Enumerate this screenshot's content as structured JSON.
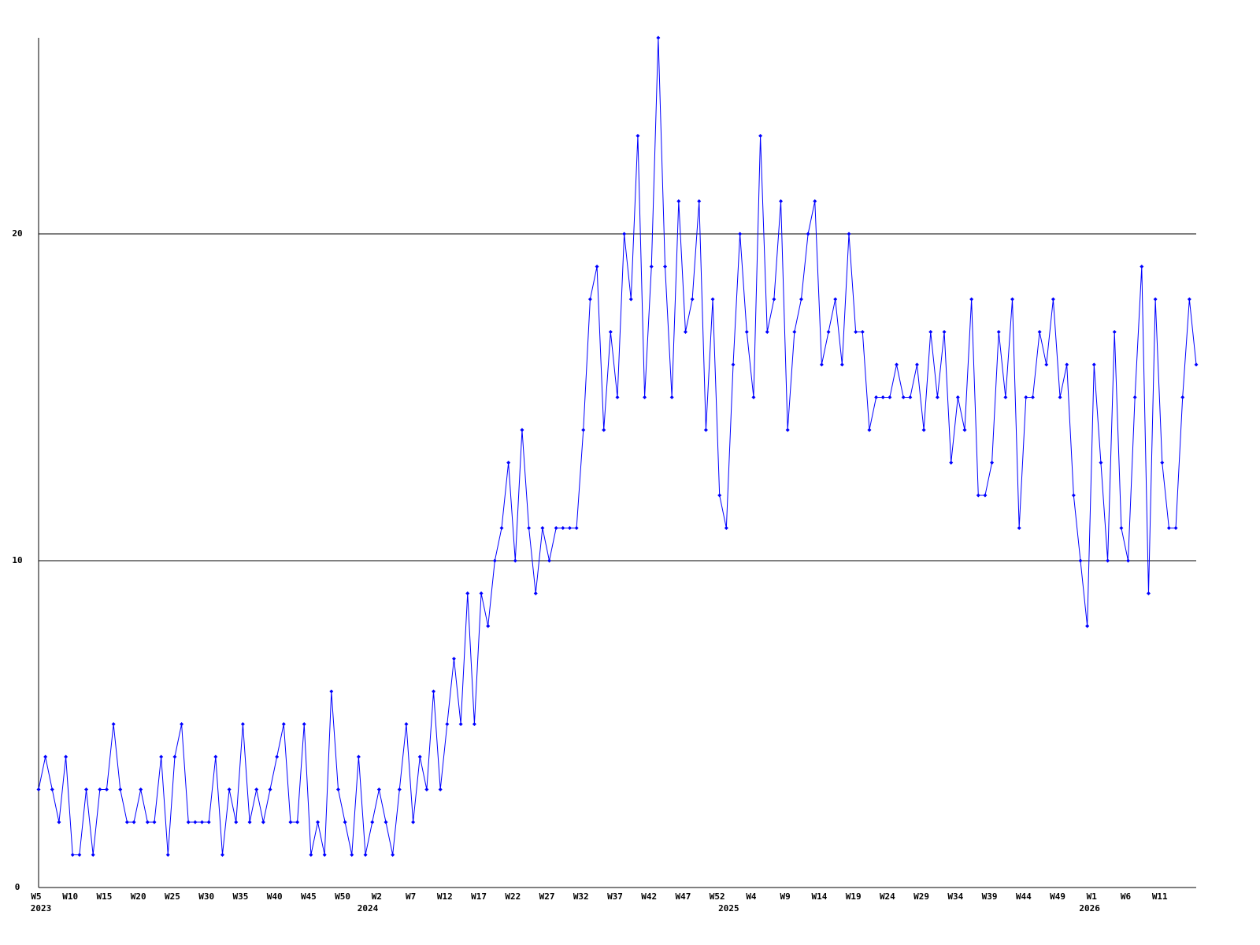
{
  "chart_data": {
    "type": "line",
    "color": "#0000ff",
    "ylim": [
      0,
      26
    ],
    "yticks": [
      0,
      10,
      20
    ],
    "grid": true,
    "categories": [
      "W5",
      null,
      null,
      null,
      null,
      "W10",
      null,
      null,
      null,
      null,
      "W15",
      null,
      null,
      null,
      null,
      "W20",
      null,
      null,
      null,
      null,
      "W25",
      null,
      null,
      null,
      null,
      "W30",
      null,
      null,
      null,
      null,
      "W35",
      null,
      null,
      null,
      null,
      "W40",
      null,
      null,
      null,
      null,
      "W45",
      null,
      null,
      null,
      null,
      "W50",
      null,
      null,
      null,
      null,
      "W2",
      null,
      null,
      null,
      null,
      "W7",
      null,
      null,
      null,
      null,
      "W12",
      null,
      null,
      null,
      null,
      "W17",
      null,
      null,
      null,
      null,
      "W22",
      null,
      null,
      null,
      null,
      "W27",
      null,
      null,
      null,
      null,
      "W32",
      null,
      null,
      null,
      null,
      "W37",
      null,
      null,
      null,
      null,
      "W42",
      null,
      null,
      null,
      null,
      "W47",
      null,
      null,
      null,
      null,
      "W52",
      null,
      null,
      null,
      null,
      "W4",
      null,
      null,
      null,
      null,
      "W9",
      null,
      null,
      null,
      null,
      "W14",
      null,
      null,
      null,
      null,
      "W19",
      null,
      null,
      null,
      null,
      "W24",
      null,
      null,
      null,
      null,
      "W29",
      null,
      null,
      null,
      null,
      "W34",
      null,
      null,
      null,
      null,
      "W39",
      null,
      null,
      null,
      null,
      "W44",
      null,
      null,
      null,
      null,
      "W49",
      null,
      null,
      null,
      null,
      "W1",
      null,
      null,
      null,
      null,
      "W6",
      null,
      null,
      null,
      null,
      "W11",
      null,
      null,
      null,
      null,
      null
    ],
    "year_labels": [
      "2023",
      null,
      null,
      null,
      null,
      null,
      null,
      null,
      null,
      null,
      null,
      null,
      null,
      null,
      null,
      null,
      null,
      null,
      null,
      null,
      null,
      null,
      null,
      null,
      null,
      null,
      null,
      null,
      null,
      null,
      null,
      null,
      null,
      null,
      null,
      null,
      null,
      null,
      null,
      null,
      null,
      null,
      null,
      null,
      null,
      null,
      null,
      null,
      "2024",
      null,
      null,
      null,
      null,
      null,
      null,
      null,
      null,
      null,
      null,
      null,
      null,
      null,
      null,
      null,
      null,
      null,
      null,
      null,
      null,
      null,
      null,
      null,
      null,
      null,
      null,
      null,
      null,
      null,
      null,
      null,
      null,
      null,
      null,
      null,
      null,
      null,
      null,
      null,
      null,
      null,
      null,
      null,
      null,
      null,
      null,
      null,
      null,
      null,
      null,
      null,
      null,
      "2025",
      null,
      null,
      null,
      null,
      null,
      null,
      null,
      null,
      null,
      null,
      null,
      null,
      null,
      null,
      null,
      null,
      null,
      null,
      null,
      null,
      null,
      null,
      null,
      null,
      null,
      null,
      null,
      null,
      null,
      null,
      null,
      null,
      null,
      null,
      null,
      null,
      null,
      null,
      null,
      null,
      null,
      null,
      null,
      null,
      null,
      null,
      null,
      null,
      null,
      null,
      null,
      null,
      "2026",
      null,
      null,
      null,
      null,
      null,
      null,
      null,
      null,
      null,
      null,
      null,
      null,
      null,
      null,
      null,
      null
    ],
    "values": [
      3,
      4,
      3,
      2,
      4,
      1,
      1,
      3,
      1,
      3,
      3,
      5,
      3,
      2,
      2,
      3,
      2,
      2,
      4,
      1,
      4,
      5,
      2,
      2,
      2,
      2,
      4,
      1,
      3,
      2,
      5,
      2,
      3,
      2,
      3,
      4,
      5,
      2,
      2,
      5,
      1,
      2,
      1,
      6,
      3,
      2,
      1,
      4,
      1,
      2,
      3,
      2,
      1,
      3,
      5,
      2,
      4,
      3,
      6,
      3,
      5,
      7,
      5,
      9,
      5,
      9,
      8,
      10,
      11,
      13,
      10,
      14,
      11,
      9,
      11,
      10,
      11,
      11,
      11,
      11,
      14,
      18,
      19,
      14,
      17,
      15,
      20,
      18,
      23,
      15,
      19,
      26,
      19,
      15,
      21,
      17,
      18,
      21,
      14,
      18,
      12,
      11,
      16,
      20,
      17,
      15,
      23,
      17,
      18,
      21,
      14,
      17,
      18,
      20,
      21,
      16,
      17,
      18,
      16,
      20,
      17,
      17,
      14,
      15,
      15,
      15,
      16,
      15,
      15,
      16,
      14,
      17,
      15,
      17,
      13,
      15,
      14,
      18,
      12,
      12,
      13,
      17,
      15,
      18,
      11,
      15,
      15,
      17,
      16,
      18,
      15,
      16,
      12,
      10,
      8,
      16,
      13,
      10,
      17,
      11,
      10,
      15,
      19,
      9,
      18,
      13,
      11,
      11,
      15,
      18,
      16
    ]
  }
}
